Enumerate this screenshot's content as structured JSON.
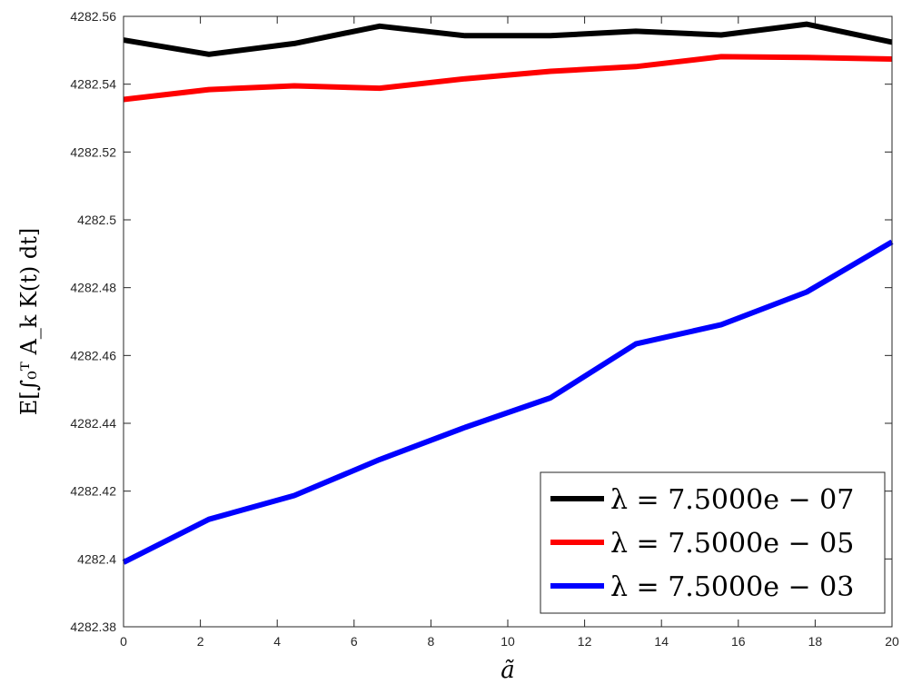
{
  "chart_data": {
    "type": "line",
    "title": "",
    "xlabel": "ã",
    "ylabel": "E[∫₀ᵀ A_k K(t) dt]",
    "xlim": [
      0,
      20
    ],
    "ylim": [
      4282.38,
      4282.56
    ],
    "xticks": [
      0,
      2,
      4,
      6,
      8,
      10,
      12,
      14,
      16,
      18,
      20
    ],
    "xtick_labels": [
      "0",
      "2",
      "4",
      "6",
      "8",
      "10",
      "12",
      "14",
      "16",
      "18",
      "20"
    ],
    "yticks": [
      4282.38,
      4282.4,
      4282.42,
      4282.44,
      4282.46,
      4282.48,
      4282.5,
      4282.52,
      4282.54,
      4282.56
    ],
    "ytick_labels": [
      "4282.38",
      "4282.4",
      "4282.42",
      "4282.44",
      "4282.46",
      "4282.48",
      "4282.5",
      "4282.52",
      "4282.54",
      "4282.56"
    ],
    "grid": false,
    "legend_position": "bottom-right",
    "x": [
      0,
      2.222,
      4.444,
      6.667,
      8.889,
      11.111,
      13.333,
      15.556,
      17.778,
      20
    ],
    "series": [
      {
        "name": "λ = 7.5000e − 07",
        "color": "#000000",
        "values": [
          4282.553,
          4282.5488,
          4282.552,
          4282.5571,
          4282.5543,
          4282.5543,
          4282.5556,
          4282.5545,
          4282.5577,
          4282.5524
        ]
      },
      {
        "name": "λ = 7.5000e − 05",
        "color": "#ff0000",
        "values": [
          4282.5355,
          4282.5384,
          4282.5395,
          4282.5388,
          4282.5416,
          4282.5438,
          4282.5452,
          4282.5481,
          4282.5479,
          4282.5474
        ]
      },
      {
        "name": "λ = 7.5000e − 03",
        "color": "#0000ff",
        "values": [
          4282.399,
          4282.4117,
          4282.4187,
          4282.4293,
          4282.4388,
          4282.4475,
          4282.4634,
          4282.4691,
          4282.4787,
          4282.4935
        ]
      }
    ]
  }
}
